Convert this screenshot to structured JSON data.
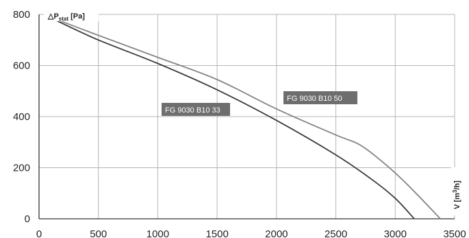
{
  "chart_data": {
    "type": "line",
    "xlabel_main": "V [m",
    "xlabel_sup": "3",
    "xlabel_tail": "/h]",
    "ylabel_main": "△P",
    "ylabel_sub": "stat",
    "ylabel_tail": " [Pa]",
    "xlim": [
      0,
      3500
    ],
    "ylim": [
      0,
      800
    ],
    "x_ticks": [
      0,
      500,
      1000,
      1500,
      2000,
      2500,
      3000,
      3500
    ],
    "y_ticks": [
      0,
      200,
      400,
      600,
      800
    ],
    "x_tick_labels": [
      "0",
      "500",
      "1000",
      "1500",
      "2000",
      "2500",
      "3000",
      "3500"
    ],
    "y_tick_labels": [
      "0",
      "200",
      "400",
      "600",
      "800"
    ],
    "grid": true,
    "series": [
      {
        "name": "FG 9030 B10 33",
        "color": "#3a3a3a",
        "x": [
          150,
          500,
          1000,
          1500,
          2000,
          2500,
          2800,
          3000,
          3160
        ],
        "y": [
          775,
          700,
          608,
          505,
          385,
          250,
          155,
          80,
          0
        ]
      },
      {
        "name": "FG 9030 B10 50",
        "color": "#858585",
        "x": [
          150,
          500,
          1000,
          1500,
          2000,
          2500,
          2700,
          2900,
          3100,
          3380
        ],
        "y": [
          780,
          718,
          632,
          545,
          430,
          328,
          290,
          220,
          135,
          0
        ]
      }
    ]
  }
}
